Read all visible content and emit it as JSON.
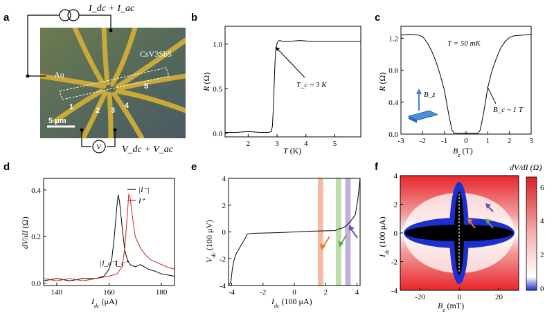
{
  "panels": {
    "a": {
      "letter": "a",
      "current_label": "I_dc + I_ac",
      "voltage_label": "V_dc + V_ac",
      "material_label": "CsV3Sb5",
      "au_label": "Au",
      "scale_label": "5 μm",
      "voltmeter_symbol": "V",
      "electrode_numbers": [
        "1",
        "2",
        "3",
        "4",
        "5"
      ]
    },
    "b": {
      "letter": "b",
      "annotation": "T_c ~ 3 K"
    },
    "c": {
      "letter": "c",
      "temperature_label": "T = 50 mK",
      "annotation": "B_c ~ 1 T",
      "inset_label": "B_z"
    },
    "d": {
      "letter": "d",
      "legend": [
        "|I⁻|",
        "I⁺"
      ],
      "annotation_left": "|I_c⁻|",
      "annotation_right": "I_c⁺"
    },
    "e": {
      "letter": "e"
    },
    "f": {
      "letter": "f",
      "colorbar_title": "dV/dI (Ω)",
      "colorbar_ticks": [
        "6",
        "4",
        "2",
        "0"
      ]
    }
  },
  "colors": {
    "black": "#000000",
    "red": "#cc2222",
    "orange_band": "#f2a07a",
    "green_band": "#9fd08a",
    "purple_band": "#a58fd0",
    "orange_arrow": "#e07a3c",
    "green_arrow": "#6aa84f",
    "purple_arrow": "#6a4fb0",
    "heat_red": "#e8262a",
    "heat_blue": "#1c2fd0",
    "gold": "#d4b33a"
  },
  "chart_data": [
    {
      "id": "b",
      "type": "line",
      "xlabel": "T (K)",
      "ylabel": "R (Ω)",
      "xlim": [
        1.2,
        5.9
      ],
      "ylim": [
        -0.04,
        1.2
      ],
      "xticks": [
        2,
        3,
        4,
        5
      ],
      "yticks": [
        0.0,
        0.5,
        1.0
      ],
      "series": [
        {
          "x": [
            1.2,
            1.6,
            2.0,
            2.4,
            2.7,
            2.8,
            2.84,
            2.88,
            2.9,
            2.93,
            2.96,
            3.0,
            3.04,
            3.1,
            3.2,
            3.4,
            3.8,
            4.2,
            4.6,
            5.0,
            5.4,
            5.9
          ],
          "y": [
            0.01,
            0.01,
            0.02,
            0.01,
            0.01,
            0.02,
            0.08,
            0.35,
            0.55,
            0.8,
            0.95,
            1.01,
            1.035,
            1.04,
            1.03,
            1.03,
            1.04,
            1.03,
            1.03,
            1.03,
            1.03,
            1.03
          ]
        }
      ]
    },
    {
      "id": "c",
      "type": "line",
      "xlabel": "B_z (T)",
      "ylabel": "R (Ω)",
      "xlim": [
        -3,
        3
      ],
      "ylim": [
        0.0,
        1.35
      ],
      "xticks": [
        -3,
        -2,
        -1,
        0,
        1,
        2,
        3
      ],
      "yticks": [
        0.0,
        0.4,
        0.8,
        1.2
      ],
      "series": [
        {
          "x": [
            -3.0,
            -2.6,
            -2.2,
            -2.0,
            -1.8,
            -1.6,
            -1.4,
            -1.2,
            -1.0,
            -0.8,
            -0.65,
            -0.55,
            -0.5,
            0.0,
            0.5,
            0.55,
            0.65,
            0.8,
            1.0,
            1.2,
            1.4,
            1.6,
            1.8,
            2.0,
            2.2,
            2.6,
            3.0
          ],
          "y": [
            1.24,
            1.25,
            1.24,
            1.22,
            1.15,
            1.05,
            0.92,
            0.75,
            0.55,
            0.25,
            0.05,
            0.01,
            0.01,
            0.01,
            0.01,
            0.01,
            0.05,
            0.25,
            0.58,
            0.8,
            0.95,
            1.08,
            1.16,
            1.21,
            1.23,
            1.24,
            1.25
          ]
        }
      ]
    },
    {
      "id": "d",
      "type": "line",
      "xlabel": "I_dc (μA)",
      "ylabel": "dV/dI (Ω)",
      "xlim": [
        135,
        185
      ],
      "ylim": [
        -0.01,
        0.45
      ],
      "xticks": [
        140,
        160,
        180
      ],
      "yticks": [
        0.0,
        0.2,
        0.4
      ],
      "series": [
        {
          "name": "|I⁻|",
          "x": [
            135,
            140,
            145,
            150,
            155,
            158,
            160,
            161,
            162,
            163,
            163.5,
            164,
            165,
            166,
            167,
            168,
            170,
            172,
            175,
            178,
            180,
            185
          ],
          "y": [
            0.01,
            0.02,
            0.01,
            0.02,
            0.02,
            0.03,
            0.06,
            0.1,
            0.2,
            0.33,
            0.38,
            0.35,
            0.24,
            0.14,
            0.1,
            0.08,
            0.07,
            0.08,
            0.06,
            0.05,
            0.04,
            0.03
          ]
        },
        {
          "name": "I⁺",
          "x": [
            135,
            140,
            145,
            150,
            155,
            160,
            163,
            165,
            166,
            167,
            167.5,
            168,
            169,
            170,
            172,
            174,
            176,
            178,
            180,
            182,
            185
          ],
          "y": [
            0.02,
            0.01,
            0.02,
            0.01,
            0.02,
            0.03,
            0.04,
            0.07,
            0.15,
            0.3,
            0.38,
            0.37,
            0.28,
            0.2,
            0.15,
            0.12,
            0.1,
            0.09,
            0.08,
            0.07,
            0.06
          ]
        }
      ]
    },
    {
      "id": "e",
      "type": "line",
      "xlabel": "I_dc (100 μA)",
      "ylabel": "V_dc (100 μV)",
      "xlim": [
        -4.2,
        4.2
      ],
      "ylim": [
        -4,
        4
      ],
      "xticks": [
        -4,
        -2,
        0,
        2,
        4
      ],
      "yticks": [
        -4,
        -2,
        0,
        2,
        4
      ],
      "bands": [
        [
          1.5,
          1.85
        ],
        [
          2.65,
          3.0
        ],
        [
          3.25,
          3.6
        ]
      ],
      "series": [
        {
          "x": [
            -4.2,
            -4.05,
            -3.95,
            -3.85,
            -3.7,
            -3.5,
            -3.3,
            -3.1,
            -3.0,
            -2.5,
            -2.0,
            -1.0,
            0.0,
            1.0,
            2.0,
            2.6,
            2.7,
            2.9,
            3.1,
            3.3,
            3.6,
            3.9,
            4.05,
            4.2
          ],
          "y": [
            -4.0,
            -3.7,
            -2.7,
            -2.1,
            -1.6,
            -1.2,
            -0.8,
            -0.4,
            -0.15,
            -0.1,
            -0.08,
            -0.05,
            0.0,
            0.05,
            0.08,
            0.1,
            0.15,
            0.25,
            0.3,
            0.45,
            0.8,
            1.3,
            2.4,
            4.0
          ]
        }
      ]
    },
    {
      "id": "f",
      "type": "heatmap",
      "xlabel": "B_z (mT)",
      "ylabel": "I_dc (100 μA)",
      "xlim": [
        -30,
        30
      ],
      "ylim": [
        -4,
        4
      ],
      "xticks": [
        -20,
        0,
        20
      ],
      "yticks": [
        -4,
        -2,
        0,
        2,
        4
      ],
      "colorbar_range": [
        0,
        6.5
      ]
    }
  ]
}
